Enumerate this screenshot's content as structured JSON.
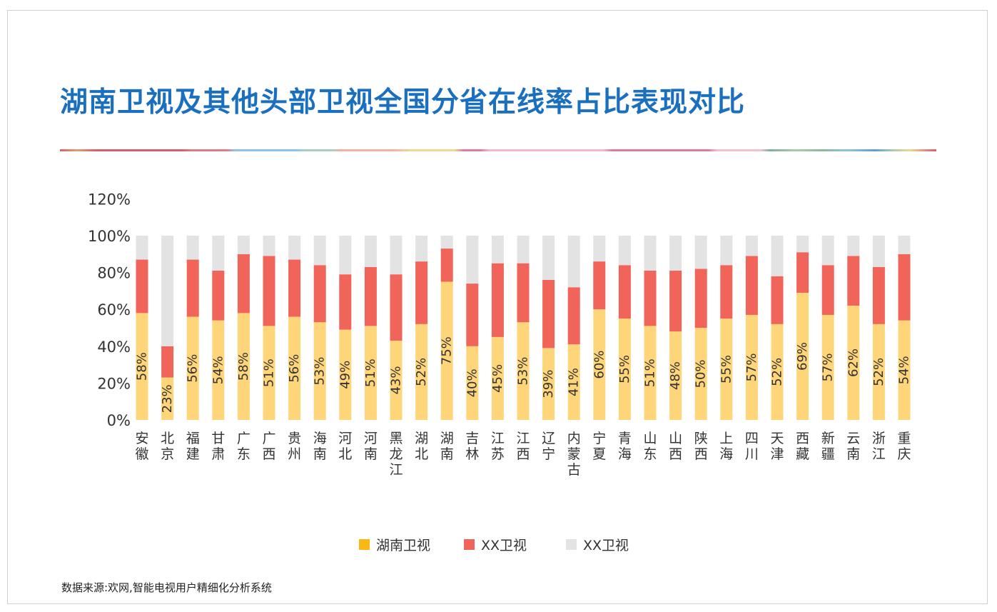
{
  "title": "湖南卫视及其他头部卫视全国分省在线率占比表现对比",
  "source": "数据来源:欢网,智能电视用户精细化分析系统",
  "chart_data": {
    "type": "bar",
    "stacked": true,
    "title": "湖南卫视及其他头部卫视全国分省在线率占比表现对比",
    "ylim": [
      0,
      120
    ],
    "yticks": [
      "0%",
      "20%",
      "40%",
      "60%",
      "80%",
      "100%",
      "120%"
    ],
    "ytick_values": [
      0,
      20,
      40,
      60,
      80,
      100,
      120
    ],
    "grid": false,
    "legend_position": "bottom",
    "categories": [
      "安徽",
      "北京",
      "福建",
      "甘肃",
      "广东",
      "广西",
      "贵州",
      "海南",
      "河北",
      "河南",
      "黑龙江",
      "湖北",
      "湖南",
      "吉林",
      "江苏",
      "江西",
      "辽宁",
      "内蒙古",
      "宁夏",
      "青海",
      "山东",
      "山西",
      "陕西",
      "上海",
      "四川",
      "天津",
      "西藏",
      "新疆",
      "云南",
      "浙江",
      "重庆"
    ],
    "series": [
      {
        "name": "湖南卫视",
        "color": "#ffd57a",
        "values": [
          58,
          23,
          56,
          54,
          58,
          51,
          56,
          53,
          49,
          51,
          43,
          52,
          75,
          40,
          45,
          53,
          39,
          41,
          60,
          55,
          51,
          48,
          50,
          55,
          57,
          52,
          69,
          57,
          62,
          52,
          54
        ],
        "labels": [
          "58%",
          "23%",
          "56%",
          "54%",
          "58%",
          "51%",
          "56%",
          "53%",
          "49%",
          "51%",
          "43%",
          "52%",
          "75%",
          "40%",
          "45%",
          "53%",
          "39%",
          "41%",
          "60%",
          "55%",
          "51%",
          "48%",
          "50%",
          "55%",
          "57%",
          "52%",
          "69%",
          "57%",
          "62%",
          "52%",
          "54%"
        ]
      },
      {
        "name": "XX卫视",
        "color": "#f0645a",
        "values": [
          29,
          17,
          31,
          27,
          32,
          38,
          31,
          31,
          30,
          32,
          36,
          34,
          18,
          34,
          40,
          32,
          37,
          31,
          26,
          29,
          30,
          33,
          32,
          29,
          32,
          26,
          22,
          27,
          27,
          31,
          36
        ]
      },
      {
        "name": "XX卫视",
        "color": "#e3e3e3",
        "values": [
          13,
          60,
          13,
          19,
          10,
          11,
          13,
          16,
          21,
          17,
          21,
          14,
          7,
          26,
          15,
          15,
          24,
          28,
          14,
          16,
          19,
          19,
          18,
          16,
          11,
          22,
          9,
          16,
          11,
          17,
          10
        ]
      }
    ]
  }
}
